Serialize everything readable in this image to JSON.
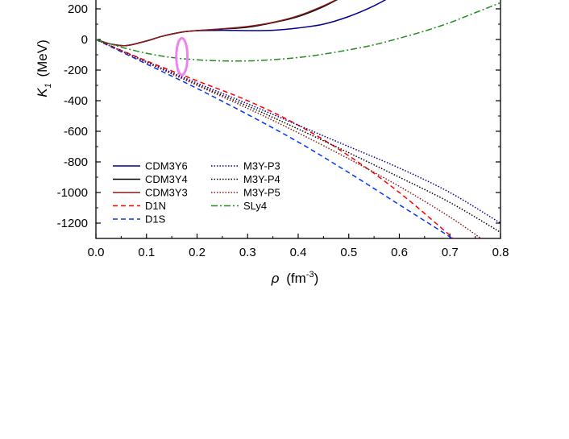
{
  "chart_data": {
    "type": "line",
    "xlabel": {
      "symbol": "ρ",
      "text": "(fm",
      "sup": "-3",
      "close": ")"
    },
    "ylabel": {
      "symbol": "K",
      "sub": "1",
      "text": "(MeV)"
    },
    "xlim": [
      0.0,
      0.8
    ],
    "ylim": [
      -1300,
      300
    ],
    "x_ticks": [
      {
        "value": 0.0,
        "label": "0.0"
      },
      {
        "value": 0.1,
        "label": "0.1"
      },
      {
        "value": 0.2,
        "label": "0.2"
      },
      {
        "value": 0.3,
        "label": "0.3"
      },
      {
        "value": 0.4,
        "label": "0.4"
      },
      {
        "value": 0.5,
        "label": "0.5"
      },
      {
        "value": 0.6,
        "label": "0.6"
      },
      {
        "value": 0.7,
        "label": "0.7"
      },
      {
        "value": 0.8,
        "label": "0.8"
      }
    ],
    "y_ticks": [
      {
        "value": 200,
        "label": "200"
      },
      {
        "value": 0,
        "label": "0"
      },
      {
        "value": -200,
        "label": "-200"
      },
      {
        "value": -400,
        "label": "-400"
      },
      {
        "value": -600,
        "label": "-600"
      },
      {
        "value": -800,
        "label": "-800"
      },
      {
        "value": -1000,
        "label": "-1000"
      },
      {
        "value": -1200,
        "label": "-1200"
      }
    ],
    "grid": false,
    "legend_position": "bottom-left",
    "series": [
      {
        "name": "CDM3Y6",
        "color": "#00008B",
        "dash": "solid",
        "x": [
          0,
          0.03,
          0.06,
          0.1,
          0.13,
          0.17,
          0.2,
          0.25,
          0.3,
          0.35,
          0.4,
          0.45,
          0.5,
          0.55,
          0.6,
          0.64
        ],
        "y": [
          0,
          -30,
          -40,
          -10,
          20,
          48,
          57,
          60,
          58,
          60,
          75,
          100,
          150,
          220,
          310,
          380
        ]
      },
      {
        "name": "CDM3Y4",
        "color": "#000000",
        "dash": "solid",
        "x": [
          0,
          0.03,
          0.06,
          0.1,
          0.13,
          0.17,
          0.2,
          0.25,
          0.3,
          0.35,
          0.4,
          0.45,
          0.5,
          0.55,
          0.56
        ],
        "y": [
          0,
          -30,
          -40,
          -10,
          20,
          48,
          58,
          68,
          80,
          110,
          150,
          215,
          300,
          380,
          395
        ]
      },
      {
        "name": "CDM3Y3",
        "color": "#8B1A1A",
        "dash": "solid",
        "x": [
          0,
          0.03,
          0.06,
          0.1,
          0.13,
          0.17,
          0.2,
          0.25,
          0.3,
          0.35,
          0.4,
          0.45,
          0.5,
          0.55,
          0.56
        ],
        "y": [
          0,
          -30,
          -40,
          -10,
          20,
          48,
          58,
          70,
          85,
          112,
          155,
          220,
          300,
          375,
          390
        ]
      },
      {
        "name": "D1N",
        "color": "#FF0000",
        "dash": "6,4",
        "x": [
          0,
          0.1,
          0.2,
          0.3,
          0.4,
          0.5,
          0.6,
          0.7,
          0.72
        ],
        "y": [
          0,
          -140,
          -270,
          -400,
          -560,
          -760,
          -1000,
          -1280,
          -1340
        ]
      },
      {
        "name": "D1S",
        "color": "#0033FF",
        "dash": "6,4",
        "x": [
          0,
          0.1,
          0.2,
          0.3,
          0.4,
          0.5,
          0.6,
          0.7,
          0.72
        ],
        "y": [
          0,
          -160,
          -320,
          -490,
          -670,
          -870,
          -1080,
          -1290,
          -1340
        ]
      },
      {
        "name": "M3Y-P3",
        "color": "#00008B",
        "dash": "1.5,2",
        "x": [
          0,
          0.1,
          0.2,
          0.3,
          0.4,
          0.5,
          0.6,
          0.7,
          0.8
        ],
        "y": [
          0,
          -145,
          -285,
          -420,
          -560,
          -700,
          -840,
          -1000,
          -1200
        ]
      },
      {
        "name": "M3Y-P4",
        "color": "#000000",
        "dash": "1.5,2",
        "x": [
          0,
          0.1,
          0.2,
          0.3,
          0.4,
          0.5,
          0.6,
          0.7,
          0.8
        ],
        "y": [
          0,
          -150,
          -295,
          -435,
          -585,
          -740,
          -900,
          -1065,
          -1260
        ]
      },
      {
        "name": "M3Y-P5",
        "color": "#8B1A1A",
        "dash": "1.5,2",
        "x": [
          0,
          0.1,
          0.2,
          0.3,
          0.4,
          0.5,
          0.6,
          0.7,
          0.77
        ],
        "y": [
          0,
          -150,
          -300,
          -450,
          -610,
          -780,
          -960,
          -1160,
          -1320
        ]
      },
      {
        "name": "SLy4",
        "color": "#228B22",
        "dash": "8,3,2,3",
        "x": [
          0,
          0.05,
          0.1,
          0.15,
          0.2,
          0.25,
          0.3,
          0.35,
          0.4,
          0.45,
          0.5,
          0.55,
          0.6,
          0.65,
          0.7,
          0.75,
          0.8
        ],
        "y": [
          0,
          -50,
          -90,
          -118,
          -133,
          -140,
          -140,
          -132,
          -118,
          -96,
          -68,
          -35,
          8,
          55,
          110,
          175,
          240
        ]
      }
    ],
    "annotation": {
      "type": "ellipse",
      "color": "#EE82EE",
      "center_x": 0.17,
      "center_y": -112,
      "rx_data": 0.011,
      "ry_data": 120
    }
  }
}
